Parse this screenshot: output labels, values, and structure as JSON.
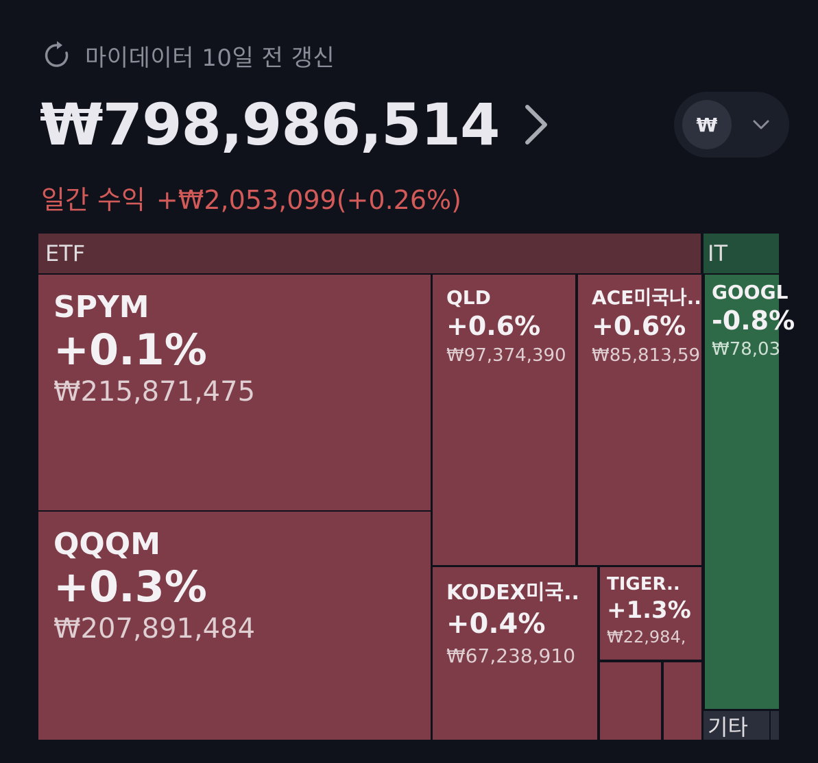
{
  "header": {
    "refresh_text": "마이데이터 10일 전 갱신",
    "total_value": "₩798,986,514",
    "currency_symbol": "₩",
    "daily_label": "일간 수익",
    "daily_value": "+₩2,053,099(+0.26%)"
  },
  "colors": {
    "background": "#0f121b",
    "gain_text": "#d25a58",
    "gain_tile": "#7d3c47",
    "loss_tile": "#2f6a48"
  },
  "treemap": {
    "sectors": [
      {
        "label": "ETF"
      },
      {
        "label": "IT"
      },
      {
        "label": "기타"
      }
    ],
    "holdings": [
      {
        "name": "SPYM",
        "change": "+0.1%",
        "value": "₩215,871,475"
      },
      {
        "name": "QQQM",
        "change": "+0.3%",
        "value": "₩207,891,484"
      },
      {
        "name": "QLD",
        "change": "+0.6%",
        "value": "₩97,374,390"
      },
      {
        "name": "ACE미국나..",
        "change": "+0.6%",
        "value": "₩85,813,59"
      },
      {
        "name": "KODEX미국..",
        "change": "+0.4%",
        "value": "₩67,238,910"
      },
      {
        "name": "TIGER..",
        "change": "+1.3%",
        "value": "₩22,984,"
      },
      {
        "name": "GOOGL",
        "change": "-0.8%",
        "value": "₩78,03"
      }
    ]
  }
}
